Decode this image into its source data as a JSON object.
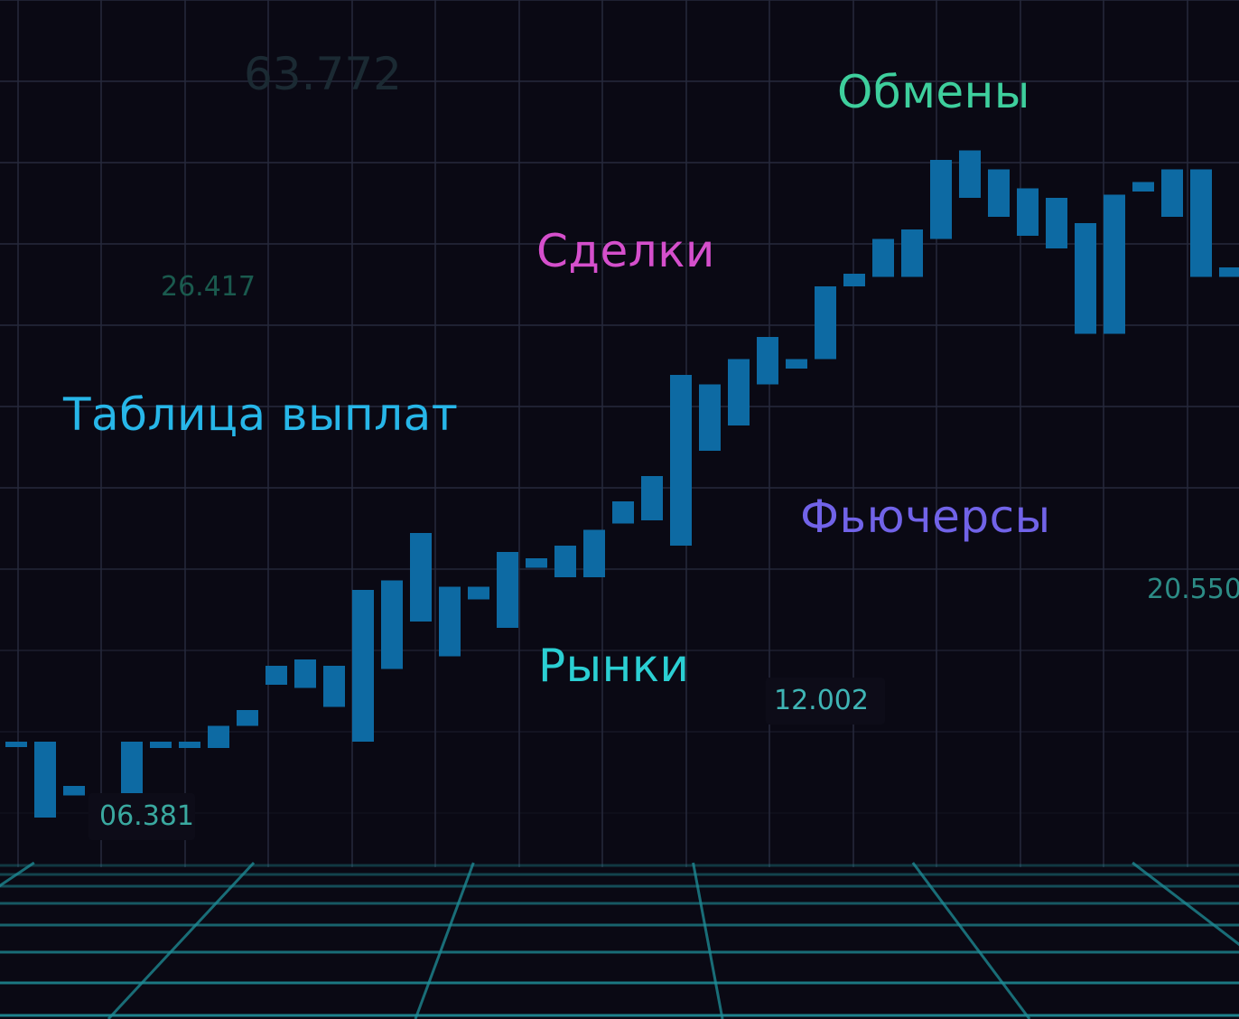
{
  "words": {
    "payout_table": "Таблица выплат",
    "deals": "Сделки",
    "exchanges": "Обмены",
    "futures": "Фьючерсы",
    "markets": "Рынки"
  },
  "numbers": {
    "n1": "63.772",
    "n2": "26.417",
    "n3": "06.381",
    "n4": "12.002",
    "n5": "20.550"
  },
  "colors": {
    "background": "#0a0914",
    "grid": "#262a3c",
    "floor_grid": "#1f8f99",
    "candle": "#0d6aa3",
    "payout_table": "#27b6e8",
    "deals": "#d54fcc",
    "exchanges": "#3ecf9d",
    "futures": "#7163e8",
    "markets": "#2bcfd3"
  },
  "chart_data": {
    "type": "candlestick",
    "candles": [
      {
        "open": 4,
        "close": 3
      },
      {
        "open": 4,
        "close": -20
      },
      {
        "open": -10,
        "close": -13
      },
      {
        "open": -21,
        "close": -26
      },
      {
        "open": 4,
        "close": -26
      },
      {
        "open": 4,
        "close": 2
      },
      {
        "open": 4,
        "close": 2
      },
      {
        "open": 9,
        "close": 2
      },
      {
        "open": 14,
        "close": 9
      },
      {
        "open": 28,
        "close": 22
      },
      {
        "open": 30,
        "close": 21
      },
      {
        "open": 28,
        "close": 15
      },
      {
        "open": 52,
        "close": 4
      },
      {
        "open": 55,
        "close": 27
      },
      {
        "open": 70,
        "close": 42
      },
      {
        "open": 53,
        "close": 31
      },
      {
        "open": 53,
        "close": 49
      },
      {
        "open": 64,
        "close": 40
      },
      {
        "open": 62,
        "close": 59
      },
      {
        "open": 66,
        "close": 56
      },
      {
        "open": 71,
        "close": 56
      },
      {
        "open": 80,
        "close": 73
      },
      {
        "open": 88,
        "close": 74
      },
      {
        "open": 120,
        "close": 66
      },
      {
        "open": 117,
        "close": 96
      },
      {
        "open": 125,
        "close": 104
      },
      {
        "open": 132,
        "close": 117
      },
      {
        "open": 125,
        "close": 122
      },
      {
        "open": 148,
        "close": 125
      },
      {
        "open": 152,
        "close": 148
      },
      {
        "open": 163,
        "close": 151
      },
      {
        "open": 166,
        "close": 151
      },
      {
        "open": 188,
        "close": 163
      },
      {
        "open": 191,
        "close": 176
      },
      {
        "open": 185,
        "close": 170
      },
      {
        "open": 179,
        "close": 164
      },
      {
        "open": 176,
        "close": 160
      },
      {
        "open": 168,
        "close": 133
      },
      {
        "open": 177,
        "close": 133
      },
      {
        "open": 181,
        "close": 178
      },
      {
        "open": 185,
        "close": 170
      },
      {
        "open": 185,
        "close": 151
      },
      {
        "open": 154,
        "close": 151
      }
    ]
  }
}
